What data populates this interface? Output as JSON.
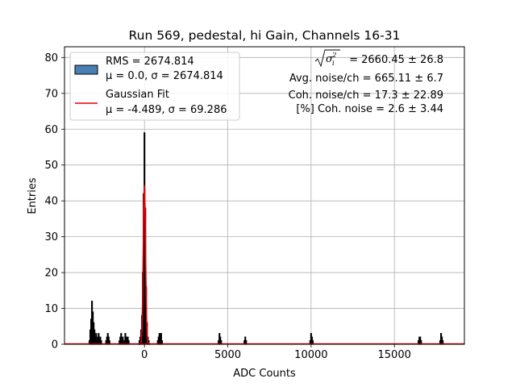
{
  "chart_data": {
    "type": "bar",
    "title": "Run 569, pedestal, hi Gain, Channels 16-31",
    "xlabel": "ADC Counts",
    "ylabel": "Entries",
    "xlim": [
      -4800,
      19200
    ],
    "ylim": [
      0,
      83
    ],
    "xticks": [
      0,
      5000,
      10000,
      15000
    ],
    "yticks": [
      0,
      10,
      20,
      30,
      40,
      50,
      60,
      70,
      80
    ],
    "grid": true,
    "legend_position": "top-left",
    "legend": [
      {
        "label_line1": "RMS = 2674.814",
        "label_line2": "μ = 0.0, σ = 2674.814",
        "kind": "patch",
        "color": "#4a7fb5"
      },
      {
        "label_line1": "Gaussian Fit",
        "label_line2": "μ = -4.489, σ = 69.286",
        "kind": "line",
        "color": "#e8000b"
      }
    ],
    "annotations": {
      "sigma_line": "= 2660.45 ± 26.8",
      "avg_noise": "Avg. noise/ch = 665.11 ± 6.7",
      "coh_noise": "Coh. noise/ch = 17.3 ± 22.89",
      "pct_coh": "[%] Coh. noise = 2.6 ± 3.44"
    },
    "histogram": {
      "name": "RMS = 2674.814",
      "color": "#4a7fb5",
      "bins": [
        [
          -3300,
          1
        ],
        [
          -3250,
          4
        ],
        [
          -3200,
          7
        ],
        [
          -3150,
          12
        ],
        [
          -3100,
          9
        ],
        [
          -3050,
          6
        ],
        [
          -3000,
          4
        ],
        [
          -2950,
          2
        ],
        [
          -2900,
          3
        ],
        [
          -2850,
          1
        ],
        [
          -2800,
          2
        ],
        [
          -2750,
          3
        ],
        [
          -2700,
          1
        ],
        [
          -2650,
          2
        ],
        [
          -2600,
          1
        ],
        [
          -2300,
          1
        ],
        [
          -2250,
          2
        ],
        [
          -2200,
          3
        ],
        [
          -2150,
          2
        ],
        [
          -2100,
          1
        ],
        [
          -1500,
          1
        ],
        [
          -1450,
          2
        ],
        [
          -1400,
          3
        ],
        [
          -1350,
          1
        ],
        [
          -1300,
          2
        ],
        [
          -1200,
          1
        ],
        [
          -1150,
          3
        ],
        [
          -1100,
          2
        ],
        [
          -1050,
          1
        ],
        [
          -1000,
          2
        ],
        [
          -950,
          1
        ],
        [
          -300,
          1
        ],
        [
          -250,
          2
        ],
        [
          -200,
          4
        ],
        [
          -150,
          8
        ],
        [
          -100,
          20
        ],
        [
          -50,
          42
        ],
        [
          0,
          59
        ],
        [
          50,
          38
        ],
        [
          100,
          16
        ],
        [
          150,
          6
        ],
        [
          200,
          2
        ],
        [
          250,
          1
        ],
        [
          800,
          1
        ],
        [
          850,
          2
        ],
        [
          900,
          3
        ],
        [
          950,
          2
        ],
        [
          1000,
          3
        ],
        [
          1050,
          1
        ],
        [
          4450,
          1
        ],
        [
          4500,
          3
        ],
        [
          4550,
          2
        ],
        [
          4600,
          1
        ],
        [
          6000,
          1
        ],
        [
          6050,
          2
        ],
        [
          6100,
          1
        ],
        [
          9950,
          1
        ],
        [
          10000,
          3
        ],
        [
          10050,
          2
        ],
        [
          10100,
          1
        ],
        [
          16450,
          1
        ],
        [
          16500,
          2
        ],
        [
          16550,
          2
        ],
        [
          16600,
          1
        ],
        [
          17750,
          1
        ],
        [
          17800,
          3
        ],
        [
          17850,
          2
        ],
        [
          17900,
          1
        ]
      ],
      "bin_width": 50
    },
    "gaussian_fit": {
      "name": "Gaussian Fit",
      "mu": -4.489,
      "sigma": 69.286,
      "amplitude": 44,
      "color": "#e8000b"
    }
  }
}
